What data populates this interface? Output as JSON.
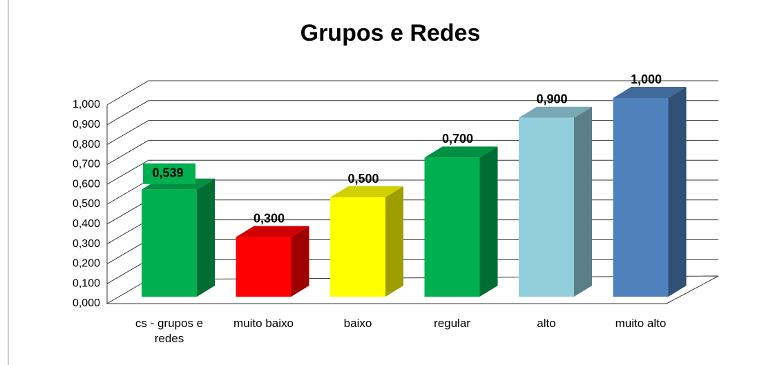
{
  "chart_data": {
    "type": "bar3d",
    "title": "Grupos e Redes",
    "categories": [
      "cs - grupos e redes",
      "muito baixo",
      "baixo",
      "regular",
      "alto",
      "muito alto"
    ],
    "values": [
      0.539,
      0.3,
      0.5,
      0.7,
      0.9,
      1.0
    ],
    "value_labels": [
      "0,539",
      "0,300",
      "0,500",
      "0,700",
      "0,900",
      "1,000"
    ],
    "colors": [
      "#00b050",
      "#ff0000",
      "#ffff00",
      "#00b050",
      "#92cddc",
      "#4f81bd"
    ],
    "ylim": [
      0,
      1
    ],
    "yticks": [
      {
        "value": 0,
        "label": "0,000"
      },
      {
        "value": 0.1,
        "label": "0,100"
      },
      {
        "value": 0.2,
        "label": "0,200"
      },
      {
        "value": 0.3,
        "label": "0,300"
      },
      {
        "value": 0.4,
        "label": "0,400"
      },
      {
        "value": 0.5,
        "label": "0,500"
      },
      {
        "value": 0.6,
        "label": "0,600"
      },
      {
        "value": 0.7,
        "label": "0,700"
      },
      {
        "value": 0.8,
        "label": "0,800"
      },
      {
        "value": 0.9,
        "label": "0,900"
      },
      {
        "value": 1.0,
        "label": "1,000"
      }
    ],
    "grid": true
  }
}
